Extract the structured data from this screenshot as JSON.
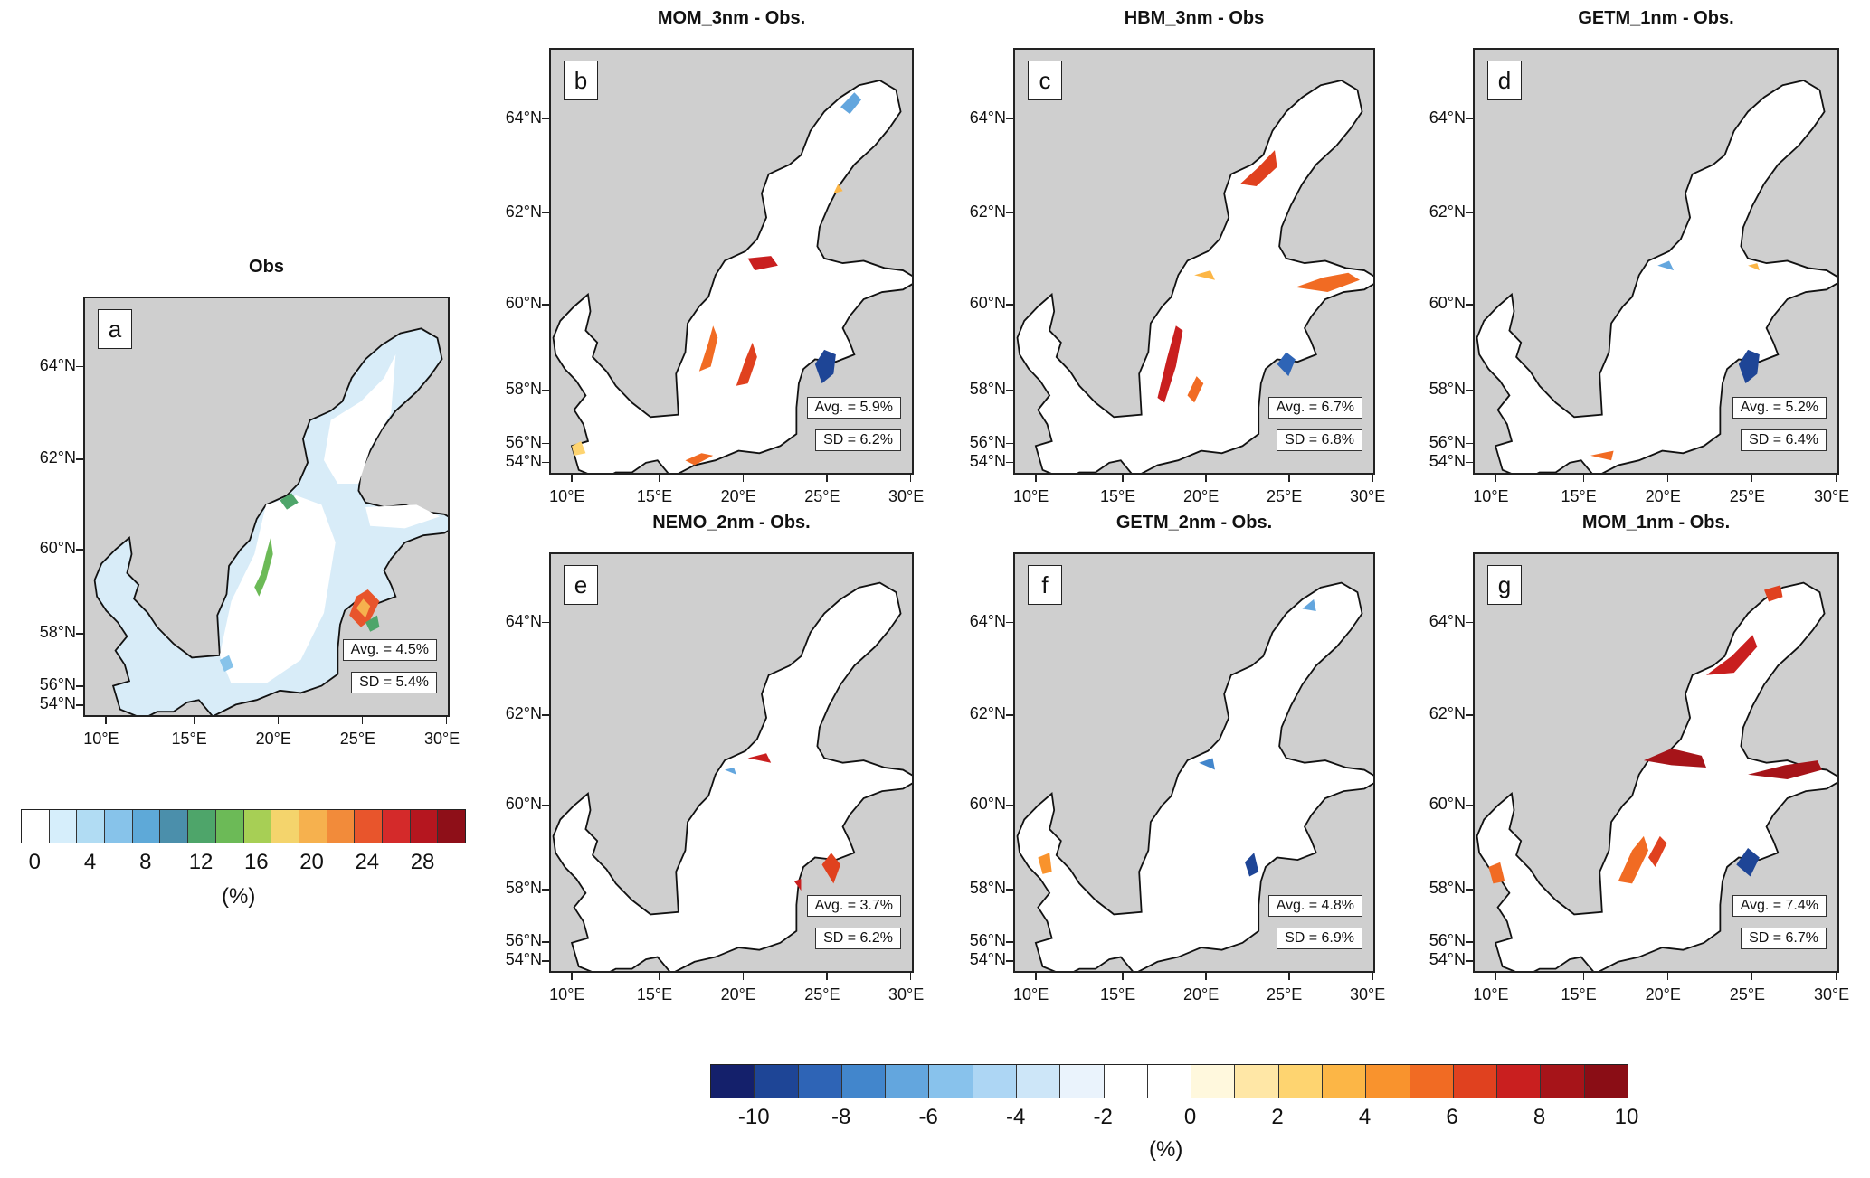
{
  "lat_labels": [
    "64°N",
    "62°N",
    "60°N",
    "58°N",
    "56°N",
    "54°N"
  ],
  "lon_labels": [
    "10°E",
    "15°E",
    "20°E",
    "25°E",
    "30°E"
  ],
  "panels": [
    {
      "id": "a",
      "title": "Obs",
      "avg": "Avg. = 4.5%",
      "sd": "SD = 5.4%",
      "scale": "obs"
    },
    {
      "id": "b",
      "title": "MOM_3nm - Obs.",
      "avg": "Avg. = 5.9%",
      "sd": "SD = 6.2%",
      "scale": "diff"
    },
    {
      "id": "c",
      "title": "HBM_3nm - Obs",
      "avg": "Avg. = 6.7%",
      "sd": "SD = 6.8%",
      "scale": "diff"
    },
    {
      "id": "d",
      "title": "GETM_1nm - Obs.",
      "avg": "Avg. = 5.2%",
      "sd": "SD = 6.4%",
      "scale": "diff"
    },
    {
      "id": "e",
      "title": "NEMO_2nm - Obs.",
      "avg": "Avg. = 3.7%",
      "sd": "SD = 6.2%",
      "scale": "diff"
    },
    {
      "id": "f",
      "title": "GETM_2nm - Obs.",
      "avg": "Avg. = 4.8%",
      "sd": "SD = 6.9%",
      "scale": "diff"
    },
    {
      "id": "g",
      "title": "MOM_1nm - Obs.",
      "avg": "Avg. = 7.4%",
      "sd": "SD = 6.7%",
      "scale": "diff"
    }
  ],
  "obs_colorbar": {
    "colors": [
      "#ffffff",
      "#d6eefb",
      "#b1dcf3",
      "#87c3ea",
      "#5ea9d8",
      "#4b8fab",
      "#4ea56a",
      "#6cba57",
      "#a7cf55",
      "#f4d46c",
      "#f6b14e",
      "#f28b3a",
      "#e8552c",
      "#d42a2a",
      "#b5161f",
      "#8e0f18"
    ],
    "labels": [
      "0",
      "4",
      "8",
      "12",
      "16",
      "20",
      "24",
      "28"
    ],
    "unit": "(%)"
  },
  "diff_colorbar": {
    "colors": [
      "#14206b",
      "#1e4596",
      "#2e64b6",
      "#4286cc",
      "#63a6de",
      "#88c2ec",
      "#add6f4",
      "#cde6f8",
      "#eaf3fc",
      "#ffffff",
      "#ffffff",
      "#fff8dd",
      "#ffe7a6",
      "#fed470",
      "#fcb646",
      "#f9932d",
      "#f16b23",
      "#e0411f",
      "#c91f1f",
      "#a61419",
      "#8a0d15"
    ],
    "labels": [
      "-10",
      "-8",
      "-6",
      "-4",
      "-2",
      "0",
      "2",
      "4",
      "6",
      "8",
      "10"
    ],
    "unit": "(%)"
  }
}
